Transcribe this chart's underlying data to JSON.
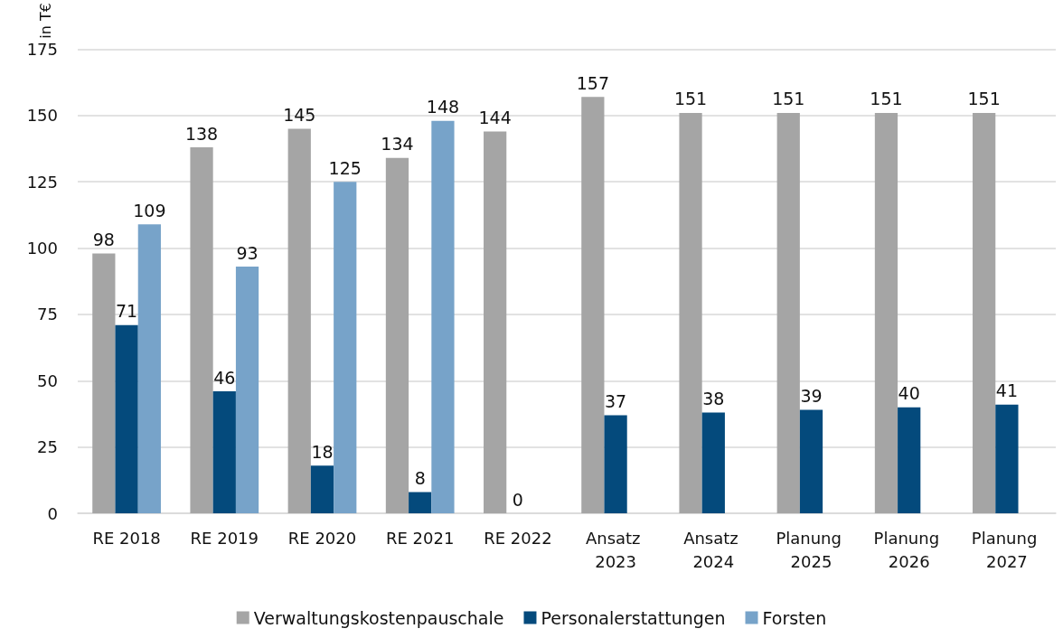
{
  "chart_data": {
    "type": "bar",
    "ylabel": "in T€",
    "categories": [
      "RE 2018",
      "RE 2019",
      "RE 2020",
      "RE 2021",
      "RE 2022",
      "Ansatz 2023",
      "Ansatz 2024",
      "Planung 2025",
      "Planung 2026",
      "Planung 2027"
    ],
    "series": [
      {
        "name": "Verwaltungskostenpauschale",
        "color": "#a5a5a5",
        "values": [
          98,
          138,
          145,
          134,
          144,
          157,
          151,
          151,
          151,
          151
        ]
      },
      {
        "name": "Personalerstattungen",
        "color": "#044a7c",
        "values": [
          71,
          46,
          18,
          8,
          0,
          37,
          38,
          39,
          40,
          41
        ]
      },
      {
        "name": "Forsten",
        "color": "#77a3c9",
        "values": [
          109,
          93,
          125,
          148,
          null,
          null,
          null,
          null,
          null,
          null
        ]
      }
    ],
    "ylim": [
      0,
      175
    ],
    "yticks": [
      0,
      25,
      50,
      75,
      100,
      125,
      150,
      175
    ],
    "grid": "y",
    "legend": "bottom",
    "data_labels": true
  }
}
